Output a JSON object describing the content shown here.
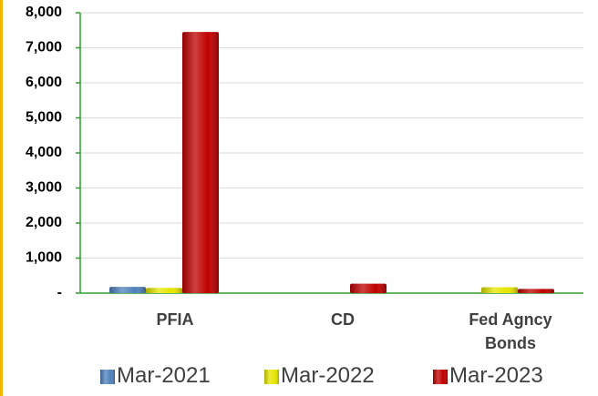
{
  "chart_data": {
    "type": "bar",
    "categories": [
      "PFIA",
      "CD",
      "Fed Agncy Bonds"
    ],
    "series": [
      {
        "name": "Mar-2021",
        "color": "#4f81bd",
        "values": [
          180,
          0,
          0
        ]
      },
      {
        "name": "Mar-2022",
        "color": "#e6e600",
        "values": [
          150,
          0,
          170
        ]
      },
      {
        "name": "Mar-2023",
        "color": "#c00000",
        "values": [
          7450,
          270,
          120
        ]
      }
    ],
    "ylim": [
      0,
      8000
    ],
    "yticks": [
      {
        "value": 0,
        "label": "-"
      },
      {
        "value": 1000,
        "label": "1,000"
      },
      {
        "value": 2000,
        "label": "2,000"
      },
      {
        "value": 3000,
        "label": "3,000"
      },
      {
        "value": 4000,
        "label": "4,000"
      },
      {
        "value": 5000,
        "label": "5,000"
      },
      {
        "value": 6000,
        "label": "6,000"
      },
      {
        "value": 7000,
        "label": "7,000"
      },
      {
        "value": 8000,
        "label": "8,000"
      }
    ],
    "grid": true,
    "legend": "bottom"
  }
}
